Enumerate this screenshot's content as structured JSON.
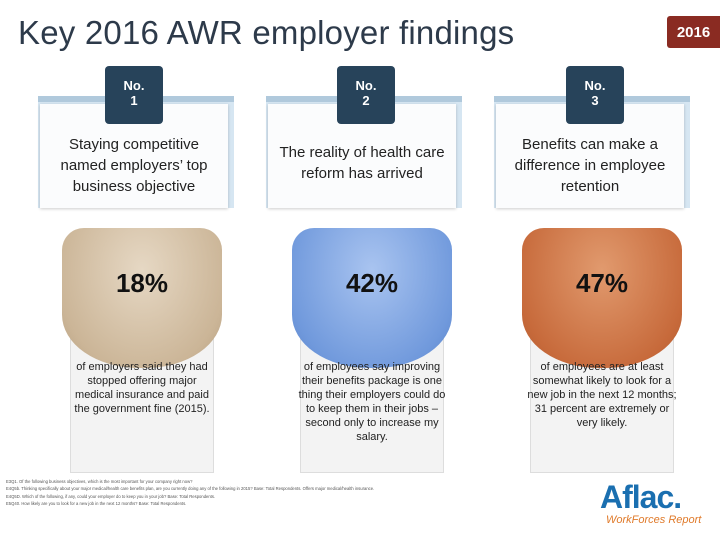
{
  "slide": {
    "title": "Key 2016 AWR employer findings",
    "year_badge": "2016"
  },
  "findings": [
    {
      "no_label": "No.",
      "number": "1",
      "headline": "Staying competitive named employers’ top business objective",
      "percent": "18%",
      "description": "of employers said they had stopped offering major medical insurance and paid the government fine (2015)."
    },
    {
      "no_label": "No.",
      "number": "2",
      "headline": "The reality of health care reform has arrived",
      "percent": "42%",
      "description": "of employees say improving their benefits package is one thing their employers could do to keep them in their jobs – second only to increase my salary."
    },
    {
      "no_label": "No.",
      "number": "3",
      "headline": "Benefits can make a difference in employee retention",
      "percent": "47%",
      "description": "of employees are at least somewhat likely to look for a new job in the next 12 months; 31 percent are extremely or very likely."
    }
  ],
  "footnotes": [
    "E3Q1. Of the following business objectives, which is the most important for your company right now?",
    "E4Q5b. Thinking specifically about your major medical/health care benefits plan, are you currently doing any of the following in 2015? Base: Total Respondents. Offers major medical/health insurance.",
    "E4Q5D. Which of the following, if any, could your employer do to keep you in your job? Base: Total Respondents.",
    "E5Q40. How likely are you to look for a new job in the next 12 months? Base: Total Respondents."
  ],
  "logo": {
    "brand": "Aflac.",
    "sub": "WorkForces Report"
  },
  "colors": {
    "tab": "#27435a",
    "badge": "#8a2b22",
    "tan": "#cbb597",
    "blue": "#7099dc",
    "orange": "#c76a3b",
    "logo_blue": "#1a6fb0",
    "logo_orange": "#e07a2a"
  }
}
